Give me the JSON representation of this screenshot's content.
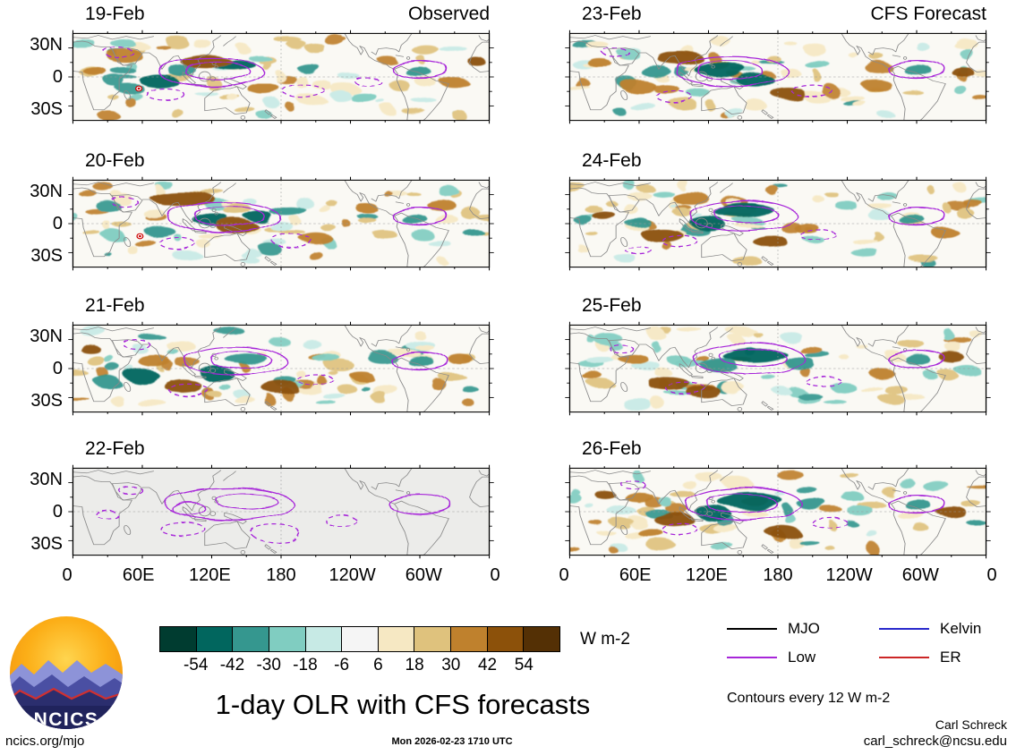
{
  "meta": {
    "site": "ncics.org/mjo",
    "timestamp": "Mon 2026-02-23 1710 UTC",
    "credit_name": "Carl Schreck",
    "credit_email": "carl_schreck@ncsu.edu",
    "contour_note": "Contours every 12 W m-2",
    "logo_text": "NCICS"
  },
  "chart_data": {
    "type": "heatmap",
    "title": "1-day OLR with CFS forecasts",
    "columns": [
      {
        "label": "Observed",
        "dates": [
          "19-Feb",
          "20-Feb",
          "21-Feb",
          "22-Feb"
        ]
      },
      {
        "label": "CFS Forecast",
        "dates": [
          "23-Feb",
          "24-Feb",
          "25-Feb",
          "26-Feb"
        ]
      }
    ],
    "x_ticks": [
      {
        "label": "0",
        "lon": 0
      },
      {
        "label": "60E",
        "lon": 60
      },
      {
        "label": "120E",
        "lon": 120
      },
      {
        "label": "180",
        "lon": 180
      },
      {
        "label": "120W",
        "lon": 240
      },
      {
        "label": "60W",
        "lon": 300
      },
      {
        "label": "0",
        "lon": 360
      }
    ],
    "y_ticks": [
      {
        "label": "30N",
        "lat": 30
      },
      {
        "label": "0",
        "lat": 0
      },
      {
        "label": "30S",
        "lat": -30
      }
    ],
    "colorbar": {
      "levels": [
        -54,
        -42,
        -30,
        -18,
        -6,
        6,
        18,
        30,
        42,
        54
      ],
      "colors": [
        "#003c30",
        "#01665e",
        "#35978f",
        "#80cdc1",
        "#c7eae5",
        "#f5f5f5",
        "#f6e8c3",
        "#dfc27d",
        "#bf812d",
        "#8c510a",
        "#543005"
      ],
      "units": "W m-2",
      "contour_interval": 12
    },
    "legend": [
      {
        "label": "MJO",
        "color": "#000000"
      },
      {
        "label": "Low",
        "color": "#a726d9"
      },
      {
        "label": "Kelvin",
        "color": "#2929cc"
      },
      {
        "label": "ER",
        "color": "#cc2626"
      }
    ],
    "panels": [
      {
        "date": "19-Feb",
        "column": 0,
        "row": 0,
        "blank": false,
        "seed": 11,
        "blobs": [
          [
            75,
            -5,
            16,
            7,
            1
          ],
          [
            95,
            6,
            12,
            6,
            2
          ],
          [
            140,
            12,
            18,
            7,
            1
          ],
          [
            205,
            8,
            10,
            5,
            2
          ],
          [
            115,
            16,
            22,
            7,
            9
          ],
          [
            45,
            22,
            16,
            6,
            8
          ],
          [
            165,
            -12,
            14,
            6,
            8
          ],
          [
            298,
            6,
            11,
            6,
            2
          ],
          [
            330,
            -6,
            12,
            5,
            8
          ],
          [
            250,
            -20,
            12,
            5,
            3
          ],
          [
            20,
            5,
            10,
            5,
            8
          ],
          [
            350,
            15,
            8,
            4,
            9
          ]
        ],
        "contours": [
          [
            120,
            5,
            45,
            15,
            0
          ],
          [
            125,
            6,
            28,
            9,
            0
          ],
          [
            300,
            8,
            24,
            9,
            0
          ],
          [
            80,
            -18,
            16,
            6,
            1
          ],
          [
            200,
            -15,
            18,
            7,
            1
          ],
          [
            255,
            -5,
            11,
            4,
            1
          ],
          [
            40,
            25,
            12,
            5,
            1
          ]
        ],
        "cyclones": [
          [
            57,
            -12
          ]
        ]
      },
      {
        "date": "20-Feb",
        "column": 0,
        "row": 1,
        "blank": false,
        "seed": 22,
        "blobs": [
          [
            95,
            26,
            28,
            7,
            9
          ],
          [
            120,
            4,
            16,
            7,
            1
          ],
          [
            142,
            -3,
            18,
            7,
            9
          ],
          [
            75,
            -8,
            13,
            6,
            2
          ],
          [
            185,
            14,
            16,
            6,
            2
          ],
          [
            210,
            -15,
            14,
            6,
            8
          ],
          [
            295,
            5,
            11,
            6,
            2
          ],
          [
            320,
            18,
            13,
            5,
            8
          ],
          [
            160,
            8,
            12,
            6,
            1
          ],
          [
            35,
            -12,
            10,
            5,
            3
          ],
          [
            255,
            15,
            10,
            4,
            8
          ],
          [
            345,
            -8,
            9,
            4,
            2
          ]
        ],
        "contours": [
          [
            130,
            7,
            48,
            16,
            0
          ],
          [
            135,
            8,
            30,
            10,
            0
          ],
          [
            300,
            8,
            24,
            9,
            0
          ],
          [
            90,
            -20,
            15,
            6,
            1
          ],
          [
            190,
            -18,
            17,
            7,
            1
          ],
          [
            45,
            22,
            11,
            5,
            1
          ]
        ],
        "cyclones": [
          [
            58,
            -13
          ]
        ]
      },
      {
        "date": "21-Feb",
        "column": 0,
        "row": 2,
        "blank": false,
        "seed": 33,
        "blobs": [
          [
            60,
            -8,
            15,
            7,
            1
          ],
          [
            30,
            -14,
            11,
            6,
            2
          ],
          [
            95,
            -18,
            16,
            7,
            9
          ],
          [
            125,
            -6,
            15,
            7,
            1
          ],
          [
            150,
            10,
            18,
            7,
            2
          ],
          [
            70,
            8,
            14,
            6,
            8
          ],
          [
            180,
            -20,
            16,
            7,
            9
          ],
          [
            300,
            8,
            11,
            6,
            2
          ],
          [
            335,
            10,
            11,
            5,
            8
          ],
          [
            220,
            10,
            12,
            5,
            3
          ],
          [
            250,
            -8,
            10,
            4,
            8
          ],
          [
            15,
            20,
            9,
            4,
            9
          ]
        ],
        "contours": [
          [
            140,
            8,
            44,
            15,
            0
          ],
          [
            145,
            9,
            26,
            9,
            0
          ],
          [
            300,
            8,
            25,
            9,
            0
          ],
          [
            100,
            -22,
            17,
            6,
            1
          ],
          [
            210,
            -12,
            15,
            6,
            1
          ],
          [
            55,
            25,
            11,
            5,
            1
          ]
        ],
        "cyclones": []
      },
      {
        "date": "22-Feb",
        "column": 0,
        "row": 3,
        "blank": true,
        "seed": 44,
        "blobs": [],
        "contours": [
          [
            135,
            8,
            55,
            17,
            0
          ],
          [
            150,
            11,
            26,
            8,
            0
          ],
          [
            100,
            3,
            14,
            7,
            0
          ],
          [
            300,
            8,
            27,
            10,
            0
          ],
          [
            95,
            -18,
            19,
            7,
            1
          ],
          [
            175,
            -22,
            21,
            8,
            1
          ],
          [
            232,
            -10,
            13,
            6,
            1
          ],
          [
            30,
            -4,
            9,
            4,
            1
          ],
          [
            50,
            22,
            10,
            4,
            1
          ]
        ],
        "cyclones": []
      },
      {
        "date": "23-Feb",
        "column": 1,
        "row": 0,
        "blank": false,
        "seed": 55,
        "blobs": [
          [
            130,
            8,
            22,
            9,
            1
          ],
          [
            160,
            -3,
            16,
            7,
            1
          ],
          [
            95,
            20,
            20,
            7,
            9
          ],
          [
            60,
            -10,
            15,
            6,
            8
          ],
          [
            75,
            5,
            13,
            6,
            2
          ],
          [
            190,
            -18,
            15,
            6,
            9
          ],
          [
            300,
            8,
            12,
            6,
            2
          ],
          [
            265,
            -8,
            13,
            5,
            8
          ],
          [
            215,
            12,
            11,
            5,
            3
          ],
          [
            340,
            5,
            10,
            5,
            9
          ],
          [
            25,
            15,
            10,
            5,
            8
          ],
          [
            110,
            -15,
            10,
            5,
            3
          ]
        ],
        "contours": [
          [
            140,
            6,
            48,
            16,
            0
          ],
          [
            138,
            7,
            28,
            10,
            0
          ],
          [
            300,
            8,
            25,
            9,
            0
          ],
          [
            90,
            -20,
            15,
            6,
            1
          ],
          [
            210,
            -15,
            17,
            7,
            1
          ],
          [
            40,
            25,
            11,
            4,
            1
          ]
        ],
        "cyclones": []
      },
      {
        "date": "24-Feb",
        "column": 1,
        "row": 1,
        "blank": false,
        "seed": 66,
        "blobs": [
          [
            150,
            14,
            26,
            9,
            1
          ],
          [
            120,
            0,
            15,
            7,
            1
          ],
          [
            80,
            -12,
            18,
            7,
            9
          ],
          [
            105,
            26,
            16,
            6,
            8
          ],
          [
            60,
            0,
            11,
            5,
            2
          ],
          [
            175,
            -20,
            15,
            6,
            9
          ],
          [
            295,
            5,
            11,
            6,
            2
          ],
          [
            325,
            -10,
            12,
            5,
            8
          ],
          [
            240,
            18,
            10,
            4,
            3
          ],
          [
            205,
            -5,
            11,
            5,
            8
          ],
          [
            30,
            8,
            10,
            5,
            9
          ],
          [
            350,
            20,
            8,
            4,
            8
          ]
        ],
        "contours": [
          [
            150,
            8,
            46,
            16,
            0
          ],
          [
            152,
            10,
            27,
            9,
            0
          ],
          [
            300,
            8,
            25,
            9,
            0
          ],
          [
            95,
            -18,
            15,
            6,
            1
          ],
          [
            215,
            -12,
            15,
            6,
            1
          ],
          [
            60,
            -28,
            11,
            4,
            1
          ]
        ],
        "cyclones": []
      },
      {
        "date": "25-Feb",
        "column": 1,
        "row": 2,
        "blank": false,
        "seed": 77,
        "blobs": [
          [
            160,
            14,
            28,
            9,
            1
          ],
          [
            130,
            3,
            16,
            7,
            2
          ],
          [
            85,
            -15,
            18,
            7,
            9
          ],
          [
            55,
            10,
            13,
            5,
            8
          ],
          [
            115,
            -23,
            15,
            6,
            9
          ],
          [
            200,
            5,
            13,
            6,
            2
          ],
          [
            300,
            10,
            11,
            6,
            2
          ],
          [
            270,
            -5,
            11,
            5,
            8
          ],
          [
            235,
            -18,
            11,
            5,
            3
          ],
          [
            330,
            12,
            11,
            5,
            9
          ],
          [
            20,
            -8,
            9,
            4,
            8
          ],
          [
            95,
            8,
            10,
            5,
            3
          ]
        ],
        "contours": [
          [
            155,
            10,
            48,
            16,
            0
          ],
          [
            158,
            12,
            28,
            9,
            0
          ],
          [
            300,
            10,
            25,
            9,
            0
          ],
          [
            100,
            -20,
            17,
            6,
            1
          ],
          [
            220,
            -14,
            15,
            6,
            1
          ],
          [
            45,
            20,
            10,
            4,
            1
          ]
        ],
        "cyclones": []
      },
      {
        "date": "26-Feb",
        "column": 1,
        "row": 3,
        "blank": false,
        "seed": 88,
        "blobs": [
          [
            155,
            12,
            28,
            10,
            1
          ],
          [
            125,
            -2,
            15,
            7,
            1
          ],
          [
            90,
            -8,
            17,
            7,
            9
          ],
          [
            60,
            15,
            13,
            5,
            8
          ],
          [
            185,
            -22,
            15,
            6,
            9
          ],
          [
            210,
            8,
            13,
            6,
            2
          ],
          [
            300,
            8,
            11,
            6,
            2
          ],
          [
            330,
            0,
            13,
            6,
            9
          ],
          [
            245,
            15,
            10,
            4,
            3
          ],
          [
            70,
            -22,
            11,
            5,
            8
          ],
          [
            30,
            18,
            9,
            4,
            9
          ],
          [
            350,
            -10,
            8,
            4,
            2
          ]
        ],
        "contours": [
          [
            150,
            8,
            50,
            17,
            0
          ],
          [
            148,
            9,
            30,
            10,
            0
          ],
          [
            300,
            8,
            25,
            9,
            0
          ],
          [
            95,
            -18,
            15,
            6,
            1
          ],
          [
            225,
            -12,
            15,
            6,
            1
          ],
          [
            55,
            28,
            10,
            4,
            1
          ]
        ],
        "cyclones": []
      }
    ]
  }
}
